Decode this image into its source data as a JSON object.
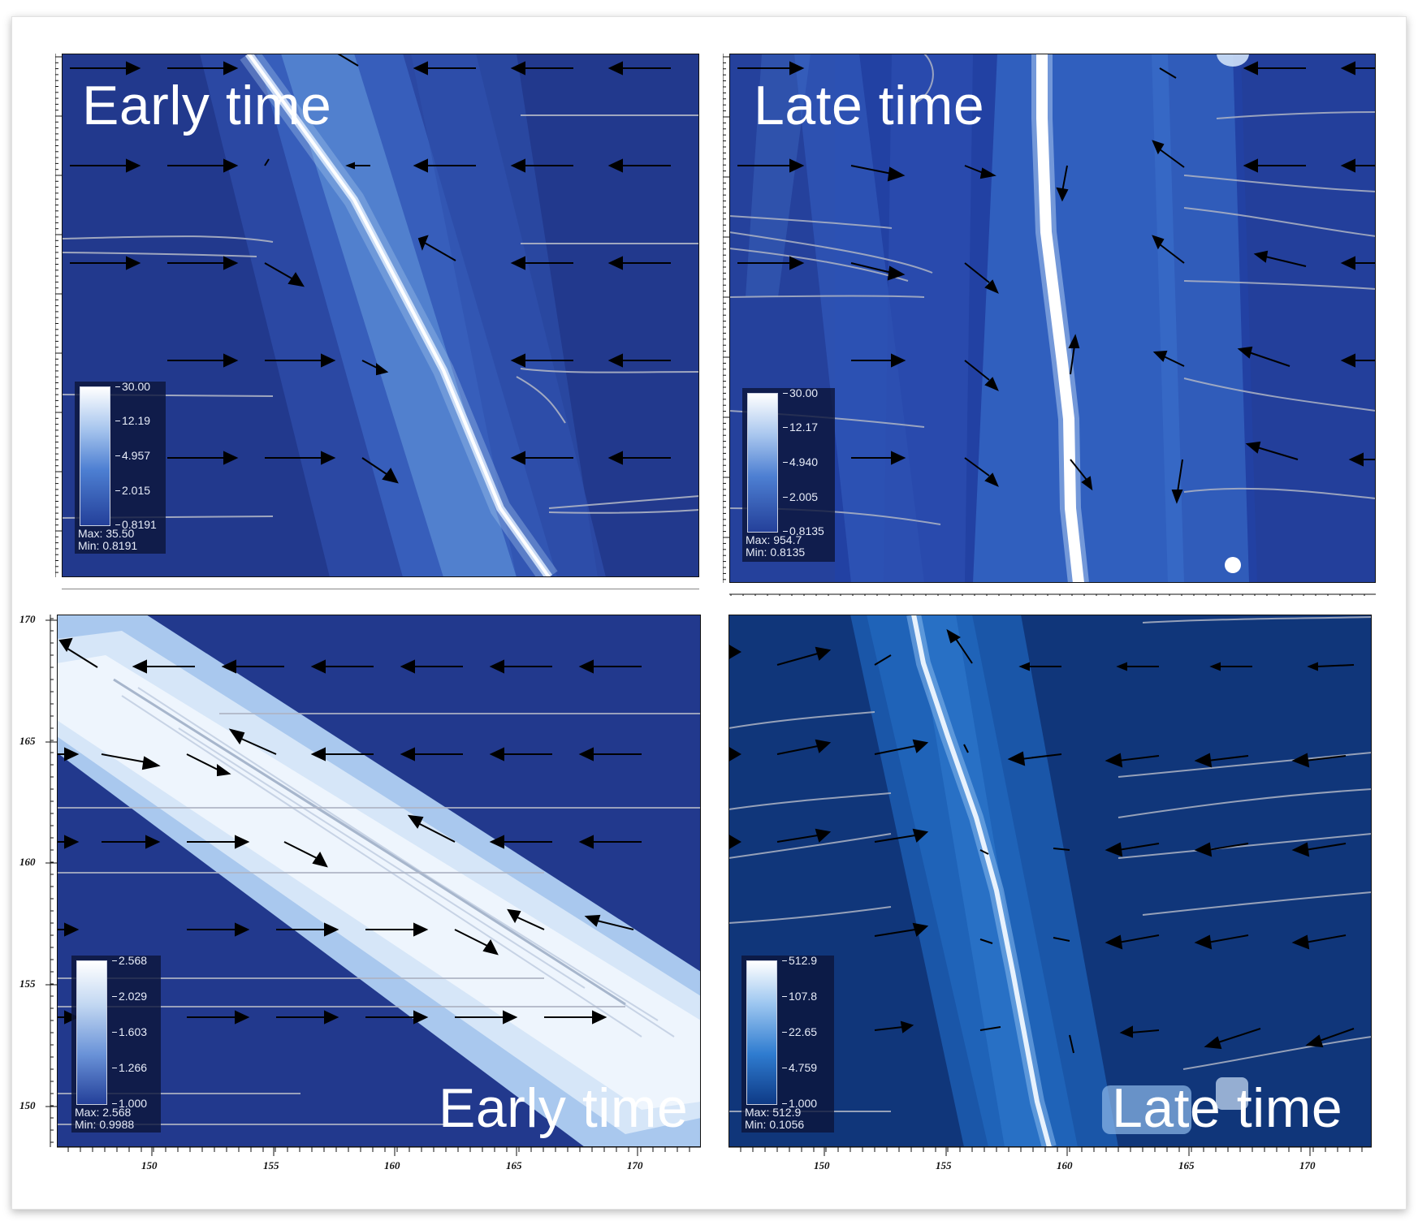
{
  "panels": {
    "top_left": {
      "label": "Early time",
      "colorbar": {
        "ticks": [
          "30.00",
          "12.19",
          "4.957",
          "2.015",
          "0.8191"
        ],
        "max": "Max:  35.50",
        "min": "Min:  0.8191"
      }
    },
    "top_right": {
      "label": "Late time",
      "colorbar": {
        "ticks": [
          "30.00",
          "12.17",
          "4.940",
          "2.005",
          "0.8135"
        ],
        "max": "Max:  954.7",
        "min": "Min:  0.8135"
      }
    },
    "bottom_left": {
      "label": "Early time",
      "colorbar": {
        "ticks": [
          "2.568",
          "2.029",
          "1.603",
          "1.266",
          "1.000"
        ],
        "max": "Max:  2.568",
        "min": "Min:  0.9988"
      }
    },
    "bottom_right": {
      "label": "Late time",
      "colorbar": {
        "ticks": [
          "512.9",
          "107.8",
          "22.65",
          "4.759",
          "1.000"
        ],
        "max": "Max:  512.9",
        "min": "Min:  0.1056"
      }
    }
  },
  "axes": {
    "y_ticks": [
      "170",
      "165",
      "160",
      "155",
      "150"
    ],
    "x_ticks": [
      "150",
      "155",
      "160",
      "165",
      "170"
    ]
  },
  "colors": {
    "background_blue": "#233a8a",
    "background_blue_dark": "#10367a",
    "accent_white": "#ffffff",
    "arrow": "#000000",
    "streamline": "#b8bcc8"
  }
}
